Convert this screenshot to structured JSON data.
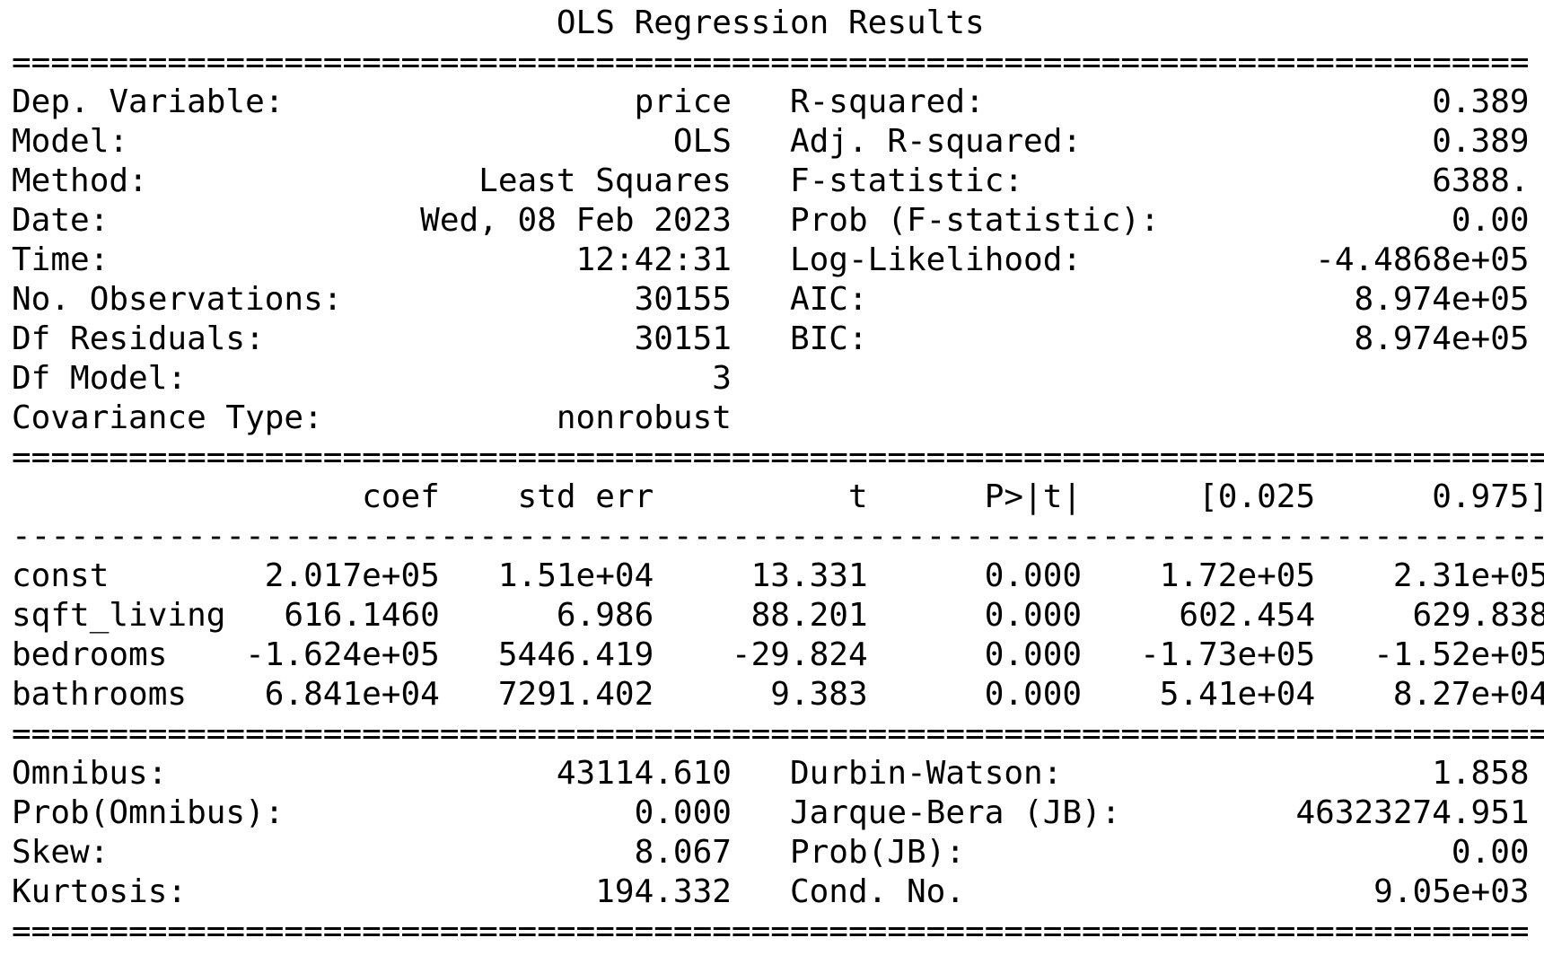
{
  "title": "OLS Regression Results",
  "separators": {
    "double_short": "==============================================================================",
    "double_long": "================================================================================",
    "single_long": "--------------------------------------------------------------------------------"
  },
  "model_summary": {
    "left": [
      {
        "label": "Dep. Variable:",
        "value": "price"
      },
      {
        "label": "Model:",
        "value": "OLS"
      },
      {
        "label": "Method:",
        "value": "Least Squares"
      },
      {
        "label": "Date:",
        "value": "Wed, 08 Feb 2023"
      },
      {
        "label": "Time:",
        "value": "12:42:31"
      },
      {
        "label": "No. Observations:",
        "value": "30155"
      },
      {
        "label": "Df Residuals:",
        "value": "30151"
      },
      {
        "label": "Df Model:",
        "value": "3"
      },
      {
        "label": "Covariance Type:",
        "value": "nonrobust"
      }
    ],
    "right": [
      {
        "label": "R-squared:",
        "value": "0.389"
      },
      {
        "label": "Adj. R-squared:",
        "value": "0.389"
      },
      {
        "label": "F-statistic:",
        "value": "6388."
      },
      {
        "label": "Prob (F-statistic):",
        "value": "0.00"
      },
      {
        "label": "Log-Likelihood:",
        "value": "-4.4868e+05"
      },
      {
        "label": "AIC:",
        "value": "8.974e+05"
      },
      {
        "label": "BIC:",
        "value": "8.974e+05"
      }
    ]
  },
  "coefficients": {
    "headers": [
      "coef",
      "std err",
      "t",
      "P>|t|",
      "[0.025",
      "0.975]"
    ],
    "rows": [
      {
        "name": "const",
        "values": [
          "2.017e+05",
          "1.51e+04",
          "13.331",
          "0.000",
          "1.72e+05",
          "2.31e+05"
        ]
      },
      {
        "name": "sqft_living",
        "values": [
          "616.1460",
          "6.986",
          "88.201",
          "0.000",
          "602.454",
          "629.838"
        ]
      },
      {
        "name": "bedrooms",
        "values": [
          "-1.624e+05",
          "5446.419",
          "-29.824",
          "0.000",
          "-1.73e+05",
          "-1.52e+05"
        ]
      },
      {
        "name": "bathrooms",
        "values": [
          "6.841e+04",
          "7291.402",
          "9.383",
          "0.000",
          "5.41e+04",
          "8.27e+04"
        ]
      }
    ]
  },
  "diagnostics": {
    "left": [
      {
        "label": "Omnibus:",
        "value": "43114.610"
      },
      {
        "label": "Prob(Omnibus):",
        "value": "0.000"
      },
      {
        "label": "Skew:",
        "value": "8.067"
      },
      {
        "label": "Kurtosis:",
        "value": "194.332"
      }
    ],
    "right": [
      {
        "label": "Durbin-Watson:",
        "value": "1.858"
      },
      {
        "label": "Jarque-Bera (JB):",
        "value": "46323274.951"
      },
      {
        "label": "Prob(JB):",
        "value": "0.00"
      },
      {
        "label": "Cond. No.",
        "value": "9.05e+03"
      }
    ]
  }
}
